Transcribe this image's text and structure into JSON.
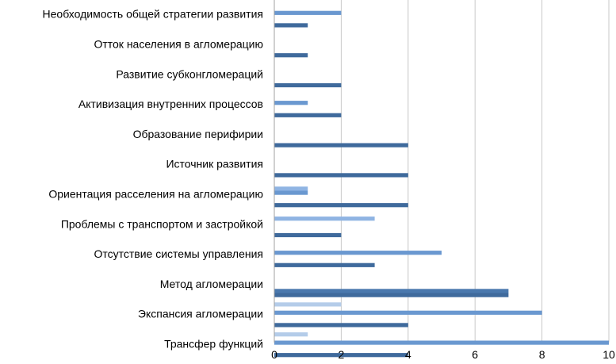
{
  "chart_data": {
    "type": "bar",
    "orientation": "horizontal",
    "categories": [
      "Необходимость общей стратегии развития",
      "Отток населения в агломерацию",
      "Развитие субконгломераций",
      "Активизация внутренних процессов",
      "Образование перифирии",
      "Источник развития",
      "Ориентация расселения на агломерацию",
      "Проблемы с транспортом и застройкой",
      "Отсутствие системы управления",
      "Метод агломерации",
      "Экспансия агломерации",
      "Трансфер функций"
    ],
    "series": [
      {
        "values": [
          0,
          0,
          0,
          0,
          0,
          0,
          0,
          0,
          0,
          0,
          2,
          1
        ],
        "color": "#B4CCE9"
      },
      {
        "values": [
          0,
          0,
          0,
          0,
          0,
          0,
          1,
          3,
          0,
          0,
          0,
          0
        ],
        "color": "#8FB4E3"
      },
      {
        "values": [
          2,
          0,
          0,
          1,
          0,
          0,
          1,
          0,
          5,
          0,
          8,
          10
        ],
        "color": "#6A98D0"
      },
      {
        "values": [
          0,
          0,
          0,
          0,
          0,
          0,
          0,
          0,
          0,
          0,
          0,
          0
        ],
        "color": "#5585C0"
      },
      {
        "values": [
          0,
          0,
          0,
          0,
          0,
          0,
          0,
          0,
          0,
          7,
          0,
          0
        ],
        "color": "#4A78AD"
      },
      {
        "values": [
          1,
          1,
          2,
          2,
          4,
          4,
          4,
          2,
          3,
          7,
          4,
          4
        ],
        "color": "#3F6A9C"
      }
    ],
    "xlim": [
      0,
      10
    ],
    "xticks": [
      0,
      2,
      4,
      6,
      8,
      10
    ],
    "grid": true,
    "title": "",
    "xlabel": "",
    "ylabel": ""
  }
}
